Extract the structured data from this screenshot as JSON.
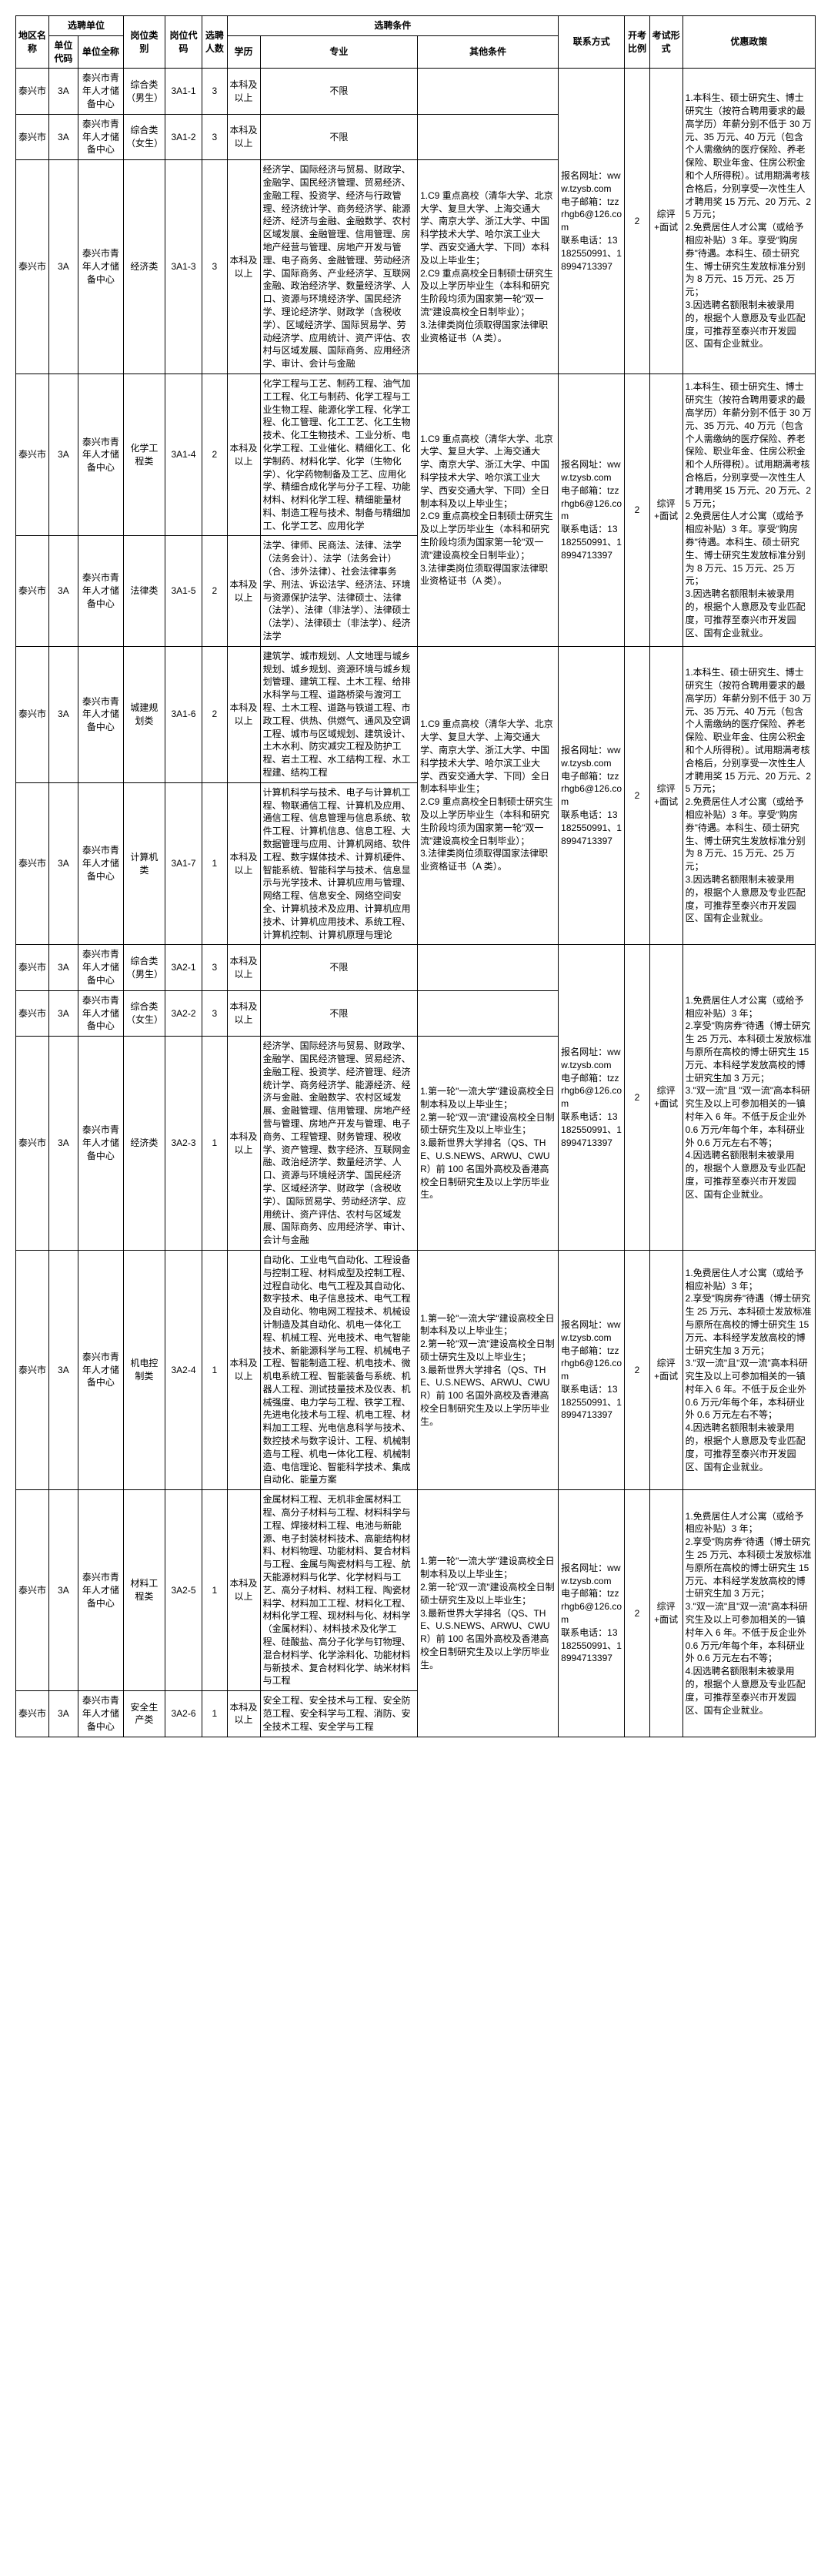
{
  "headers": {
    "region": "地区名称",
    "unit_group": "选聘单位",
    "unit_code": "单位代码",
    "unit_name": "单位全称",
    "pos_cat": "岗位类别",
    "pos_code": "岗位代码",
    "num": "选聘人数",
    "cond_group": "选聘条件",
    "edu": "学历",
    "major": "专业",
    "other": "其他条件",
    "contact": "联系方式",
    "ratio": "开考比例",
    "exam": "考试形式",
    "policy": "优惠政策"
  },
  "common": {
    "region": "泰兴市",
    "unit_code": "3A",
    "unit_name": "泰兴市青年人才储备中心",
    "edu": "本科及以上",
    "ratio": "2",
    "exam": "综评+面试",
    "contact_text": "报名网址：www.tzysb.com\n电子邮箱：tzzrhgb6@126.com\n联系电话：13182550991、18994713397"
  },
  "rows": [
    {
      "pcat": "综合类（男生）",
      "pcode": "3A1-1",
      "num": "3",
      "major": "不限",
      "other": "",
      "other_rowspan": 0
    },
    {
      "pcat": "综合类（女生）",
      "pcode": "3A1-2",
      "num": "3",
      "major": "不限",
      "other": "",
      "other_rowspan": 0
    },
    {
      "pcat": "经济类",
      "pcode": "3A1-3",
      "num": "3",
      "major": "经济学、国际经济与贸易、财政学、金融学、国民经济管理、贸易经济、金融工程、投资学、经济与行政管理、经济统计学、商务经济学、能源经济、经济与金融、金融数学、农村区域发展、金融管理、信用管理、房地产经营与管理、房地产开发与管理、电子商务、金融管理、劳动经济学、国际商务、产业经济学、互联网金融、政治经济学、数量经济学、人口、资源与环境经济学、国民经济学、理论经济学、财政学（含税收学）、区域经济学、国际贸易学、劳动经济学、应用统计、资产评估、农村与区域发展、国际商务、应用经济学、审计、会计与金融",
      "other": "1.C9 重点高校（清华大学、北京大学、复旦大学、上海交通大学、南京大学、浙江大学、中国科学技术大学、哈尔滨工业大学、西安交通大学、下同）本科及以上毕业生；\n2.C9 重点高校全日制硕士研究生及以上学历毕业生（本科和研究生阶段均须为国家第一轮\"双一流\"建设高校全日制毕业）；\n3.法律类岗位须取得国家法律职业资格证书（A 类）。",
      "other_rowspan": 1
    },
    {
      "pcat": "化学工程类",
      "pcode": "3A1-4",
      "num": "2",
      "major": "化学工程与工艺、制药工程、油气加工工程、化工与制药、化学工程与工业生物工程、能源化学工程、化学工程、化工管理、化工工艺、化工生物技术、化工生物技术、工业分析、电化学工程、工业催化、精细化工、化学制药、材料化学、化学（生物化学）、化学药物制备及工艺、应用化学、精细合成化学与分子工程、功能材料、材料化学工程、精细能量材料、制造工程与技术、制备与精细加工、化学工艺、应用化学",
      "other": "1.C9 重点高校（清华大学、北京大学、复旦大学、上海交通大学、南京大学、浙江大学、中国科学技术大学、哈尔滨工业大学、西安交通大学、下同）全日制本科及以上毕业生；\n2.C9 重点高校全日制硕士研究生及以上学历毕业生（本科和研究生阶段均须为国家第一轮\"双一流\"建设高校全日制毕业）；\n3.法律类岗位须取得国家法律职业资格证书（A 类）。",
      "other_rowspan": 2
    },
    {
      "pcat": "法律类",
      "pcode": "3A1-5",
      "num": "2",
      "major": "法学、律师、民商法、法律、法学（法务会计）、法学（法务会计）（合、涉外法律）、社会法律事务学、刑法、诉讼法学、经济法、环境与资源保护法学、法律硕士、法律（法学）、法律（非法学）、法律硕士（法学）、法律硕士（非法学）、经济法学",
      "other": "",
      "other_rowspan": 0
    },
    {
      "pcat": "城建规划类",
      "pcode": "3A1-6",
      "num": "2",
      "major": "建筑学、城市规划、人文地理与城乡规划、城乡规划、资源环境与城乡规划管理、建筑工程、土木工程、给排水科学与工程、道路桥梁与渡河工程、土木工程、道路与铁道工程、市政工程、供热、供燃气、通风及空调工程、城市与区域规划、建筑设计、土木水利、防灾减灾工程及防护工程、岩土工程、水工结构工程、水工程建、结构工程",
      "other": "1.C9 重点高校（清华大学、北京大学、复旦大学、上海交通大学、南京大学、浙江大学、中国科学技术大学、哈尔滨工业大学、西安交通大学、下同）全日制本科毕业生；\n2.C9 重点高校全日制硕士研究生及以上学历毕业生（本科和研究生阶段均须为国家第一轮\"双一流\"建设高校全日制毕业）；\n3.法律类岗位须取得国家法律职业资格证书（A 类）。",
      "other_rowspan": 2
    },
    {
      "pcat": "计算机类",
      "pcode": "3A1-7",
      "num": "1",
      "major": "计算机科学与技术、电子与计算机工程、物联通信工程、计算机及应用、通信工程、信息管理与信息系统、软件工程、计算机信息、信息工程、大数据管理与应用、计算机网络、软件工程、数字媒体技术、计算机硬件、智能系统、智能科学与技术、信息显示与光学技术、计算机应用与管理、网络工程、信息安全、网络空间安全、计算机技术及应用、计算机应用技术、计算机应用技术、系统工程、计算机控制、计算机原理与理论",
      "other": "",
      "other_rowspan": 0
    },
    {
      "pcat": "综合类（男生）",
      "pcode": "3A2-1",
      "num": "3",
      "major": "不限",
      "other": "",
      "other_rowspan": 0
    },
    {
      "pcat": "综合类（女生）",
      "pcode": "3A2-2",
      "num": "3",
      "major": "不限",
      "other": "",
      "other_rowspan": 0
    },
    {
      "pcat": "经济类",
      "pcode": "3A2-3",
      "num": "1",
      "major": "经济学、国际经济与贸易、财政学、金融学、国民经济管理、贸易经济、金融工程、投资学、经济管理、经济统计学、商务经济学、能源经济、经济与金融、金融数学、农村区域发展、金融管理、信用管理、房地产经营与管理、房地产开发与管理、电子商务、工程管理、财务管理、税收学、资产管理、数字经济、互联网金融、政治经济学、数量经济学、人口、资源与环境经济学、国民经济学、区域经济学、财政学（含税收学）、国际贸易学、劳动经济学、应用统计、资产评估、农村与区域发展、国际商务、应用经济学、审计、会计与金融",
      "other": "1.第一轮\"一流大学\"建设高校全日制本科及以上毕业生；\n2.第一轮\"双一流\"建设高校全日制硕士研究生及以上毕业生；\n3.最新世界大学排名（QS、THE、U.S.NEWS、ARWU、CWUR）前 100 名国外高校及香港高校全日制研究生及以上学历毕业生。",
      "other_rowspan": 1
    },
    {
      "pcat": "机电控制类",
      "pcode": "3A2-4",
      "num": "1",
      "major": "自动化、工业电气自动化、工程设备与控制工程、材料成型及控制工程、过程自动化、电气工程及其自动化、数字技术、电子信息技术、电气工程及自动化、物电网工程技术、机械设计制造及其自动化、机电一体化工程、机械工程、光电技术、电气智能技术、新能源科学与工程、机械电子工程、智能制造工程、机电技术、微机电系统工程、智能装备与系统、机器人工程、测试技量技术及仪表、机械强度、电力学与工程、铁学工程、先进电化技术与工程、机电工程、材料加工工程、光电信息科学与技术、数控技术与数字设计、工程、机械制造与工程、机电一体化工程、机械制造、电信理论、智能科学技术、集成自动化、能量方案",
      "other": "1.第一轮\"一流大学\"建设高校全日制本科及以上毕业生；\n2.第一轮\"双一流\"建设高校全日制硕士研究生及以上毕业生；\n3.最新世界大学排名（QS、THE、U.S.NEWS、ARWU、CWUR）前 100 名国外高校及香港高校全日制研究生及以上学历毕业生。",
      "other_rowspan": 1
    },
    {
      "pcat": "材料工程类",
      "pcode": "3A2-5",
      "num": "1",
      "major": "金属材料工程、无机非金属材料工程、高分子材料与工程、材料科学与工程、焊接材料工程、电池与新能源、电子封装材料技术、高能结构材料、材料物理、功能材料、复合材料与工程、金属与陶瓷材料与工程、航天能源材料与化学、化学材料与工艺、高分子材料、材料工程、陶瓷材料学、材料加工工程、材料化工程、材料化学工程、现材料与化、材料学（金属材料）、材料技术及化学工程、硅酸盐、高分子化学与钉物理、混合材料学、化学涂料化、功能材料与新技术、复合材料化学、纳米材料与工程",
      "other": "1.第一轮\"一流大学\"建设高校全日制本科及以上毕业生；\n2.第一轮\"双一流\"建设高校全日制硕士研究生及以上毕业生；\n3.最新世界大学排名（QS、THE、U.S.NEWS、ARWU、CWUR）前 100 名国外高校及香港高校全日制研究生及以上学历毕业生。",
      "other_rowspan": 2
    },
    {
      "pcat": "安全生产类",
      "pcode": "3A2-6",
      "num": "1",
      "major": "安全工程、安全技术与工程、安全防范工程、安全科学与工程、消防、安全技术工程、安全学与工程",
      "other": "",
      "other_rowspan": 0
    }
  ],
  "groups": [
    {
      "start": 0,
      "len": 3,
      "policy": "1.本科生、硕士研究生、博士研究生（按符合聘用要求的最高学历）年薪分别不低于 30 万元、35 万元、40 万元（包含个人需缴纳的医疗保险、养老保险、职业年金、住房公积金和个人所得税）。试用期满考核合格后，分别享受一次性生人才聘用奖 15 万元、20 万元、25 万元；\n2.免费居住人才公寓（或给予相应补贴）3 年。享受\"购房券\"待遇。本科生、硕士研究生、博士研究生发放标准分别为 8 万元、15 万元、25 万元；\n3.因选聘名额限制未被录用的，根据个人意愿及专业匹配度，可推荐至泰兴市开发园区、国有企业就业。"
    },
    {
      "start": 3,
      "len": 2,
      "policy": "1.本科生、硕士研究生、博士研究生（按符合聘用要求的最高学历）年薪分别不低于 30 万元、35 万元、40 万元（包含个人需缴纳的医疗保险、养老保险、职业年金、住房公积金和个人所得税）。试用期满考核合格后，分别享受一次性生人才聘用奖 15 万元、20 万元、25 万元；\n2.免费居住人才公寓（或给予相应补贴）3 年。享受\"购房券\"待遇。本科生、硕士研究生、博士研究生发放标准分别为 8 万元、15 万元、25 万元；\n3.因选聘名额限制未被录用的，根据个人意愿及专业匹配度，可推荐至泰兴市开发园区、国有企业就业。"
    },
    {
      "start": 5,
      "len": 2,
      "policy": "1.本科生、硕士研究生、博士研究生（按符合聘用要求的最高学历）年薪分别不低于 30 万元、35 万元、40 万元（包含个人需缴纳的医疗保险、养老保险、职业年金、住房公积金和个人所得税）。试用期满考核合格后，分别享受一次性生人才聘用奖 15 万元、20 万元、25 万元；\n2.免费居住人才公寓（或给予相应补贴）3 年。享受\"购房券\"待遇。本科生、硕士研究生、博士研究生发放标准分别为 8 万元、15 万元、25 万元；\n3.因选聘名额限制未被录用的，根据个人意愿及专业匹配度，可推荐至泰兴市开发园区、国有企业就业。"
    },
    {
      "start": 7,
      "len": 3,
      "policy": "1.免费居住人才公寓（或给予相应补贴）3 年；\n2.享受\"购房券\"待遇（博士研究生 25 万元、本科硕士发放标准与原所在高校的博士研究生 15 万元、本科经学发放高校的博士研究生加 3 万元；\n3.\"双一流\"且 \"双一流\"高本科研究生及以上可参加相关的一镇村年入 6 年。不低于反企业外 0.6 万元/年每个年，本科研业外 0.6 万元左右不等；\n4.因选聘名额限制未被录用的，根据个人意愿及专业匹配度，可推荐至泰兴市开发园区、国有企业就业。"
    },
    {
      "start": 10,
      "len": 1,
      "policy": "1.免费居住人才公寓（或给予相应补贴）3 年；\n2.享受\"购房券\"待遇（博士研究生 25 万元、本科硕士发放标准与原所在高校的博士研究生 15 万元、本科经学发放高校的博士研究生加 3 万元；\n3.\"双一流\"且\"双一流\"高本科研究生及以上可参加相关的一镇村年入 6 年。不低于反企业外 0.6 万元/年每个年，本科研业外 0.6 万元左右不等；\n4.因选聘名额限制未被录用的，根据个人意愿及专业匹配度，可推荐至泰兴市开发园区、国有企业就业。"
    },
    {
      "start": 11,
      "len": 2,
      "policy": "1.免费居住人才公寓（或给予相应补贴）3 年；\n2.享受\"购房券\"待遇（博士研究生 25 万元、本科硕士发放标准与原所在高校的博士研究生 15 万元、本科经学发放高校的博士研究生加 3 万元；\n3.\"双一流\"且\"双一流\"高本科研究生及以上可参加相关的一镇村年入 6 年。不低于反企业外 0.6 万元/年每个年，本科研业外 0.6 万元左右不等；\n4.因选聘名额限制未被录用的，根据个人意愿及专业匹配度，可推荐至泰兴市开发园区、国有企业就业。"
    }
  ]
}
